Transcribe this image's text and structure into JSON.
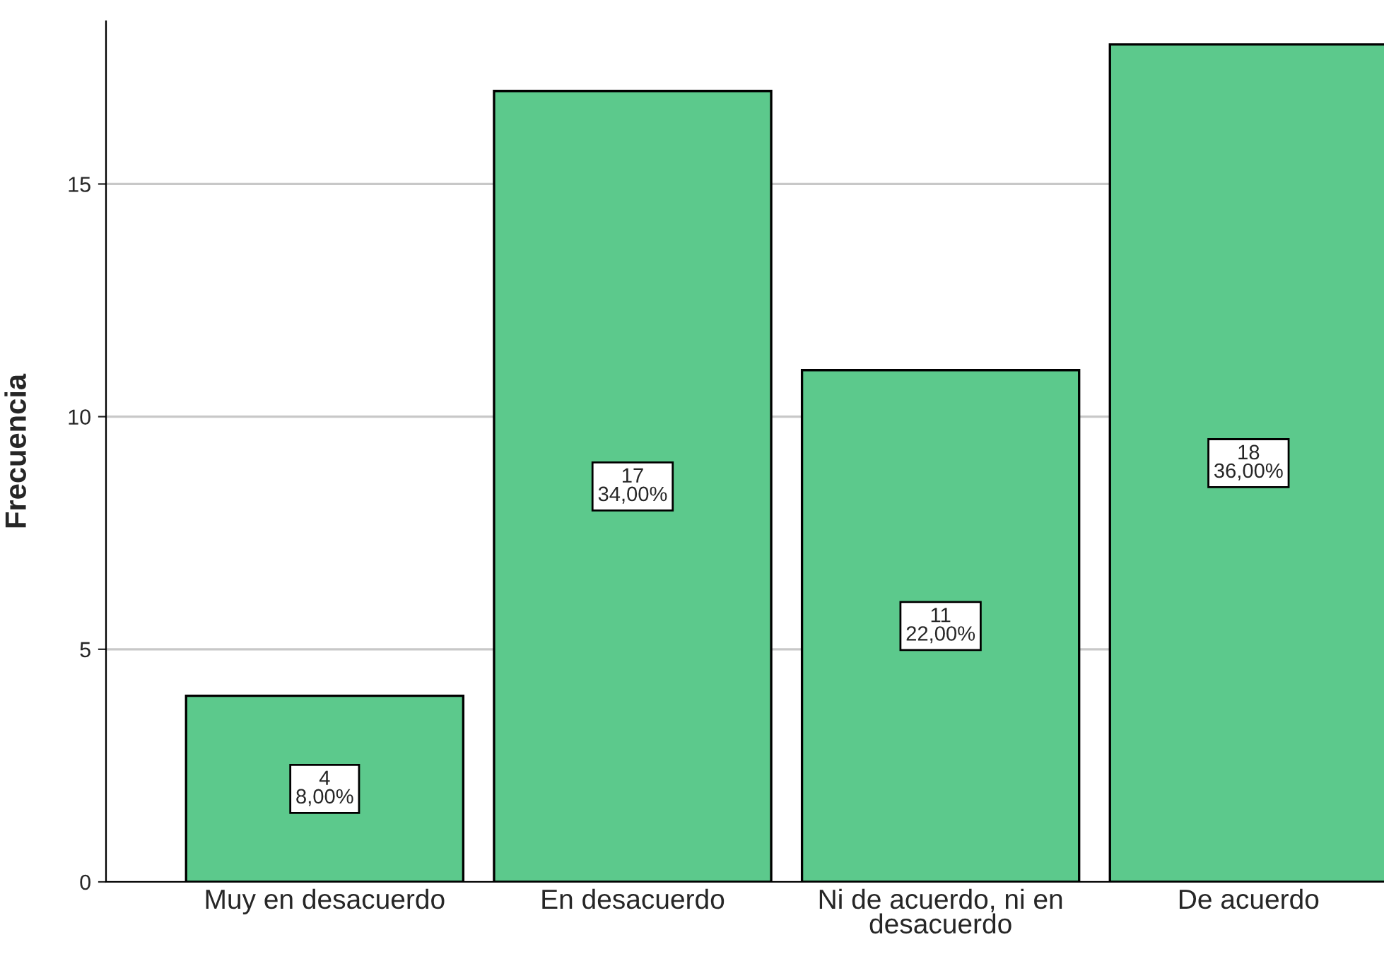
{
  "chart_data": {
    "type": "bar",
    "ylabel": "Frecuencia",
    "categories": [
      "Muy en desacuerdo",
      "En desacuerdo",
      "Ni de acuerdo, ni en\ndesacuerdo",
      "De acuerdo"
    ],
    "values": [
      4,
      17,
      11,
      18
    ],
    "value_labels": [
      "4\n8,00%",
      "17\n34,00%",
      "11\n22,00%",
      "18\n36,00%"
    ],
    "color": "#5cc98c",
    "ylim": [
      0,
      18.5
    ],
    "yticks": [
      0,
      5,
      10,
      15
    ],
    "grid": "y",
    "legend": false
  }
}
